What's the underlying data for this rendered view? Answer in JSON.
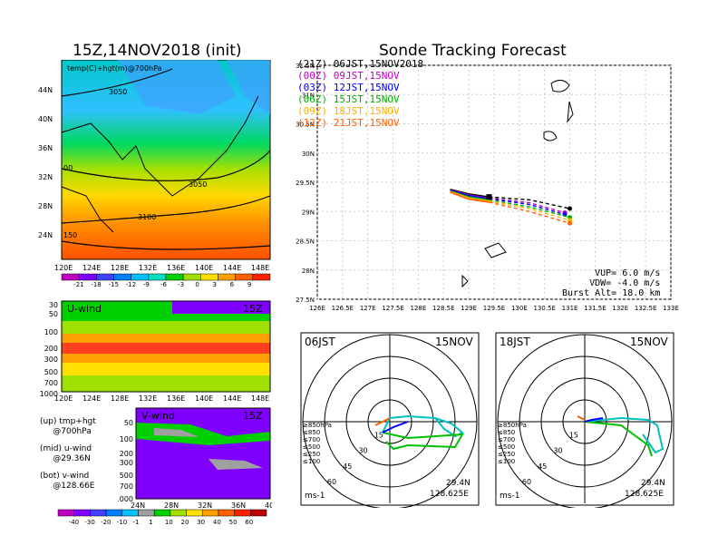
{
  "left_title": "15Z,14NOV2018 (init)",
  "right_title": "Sonde Tracking Forecast",
  "map": {
    "label": "temp(C)+hgt(m)@700hPa",
    "lat_ticks": [
      "44N",
      "40N",
      "36N",
      "32N",
      "28N",
      "24N"
    ],
    "lon_ticks": [
      "120E",
      "124E",
      "128E",
      "132E",
      "136E",
      "140E",
      "144E",
      "148E"
    ],
    "contour_labels": [
      "3050",
      "00",
      "3050",
      "3100",
      "150"
    ],
    "colorbar_ticks": [
      "-21",
      "-18",
      "-15",
      "-12",
      "-9",
      "-6",
      "-3",
      "0",
      "3",
      "6",
      "9"
    ],
    "colorbar_colors": [
      "#c000c0",
      "#8000ff",
      "#4040ff",
      "#0080ff",
      "#00c0ff",
      "#00e0c0",
      "#00d000",
      "#a0e000",
      "#ffe000",
      "#ffa000",
      "#ff6000",
      "#ff2000"
    ]
  },
  "uwind": {
    "label": "U-wind",
    "time": "15Z",
    "p_ticks": [
      "30",
      "50",
      "100",
      "200",
      "300",
      "500",
      "700",
      "1000"
    ],
    "lon_ticks": [
      "120E",
      "124E",
      "128E",
      "132E",
      "136E",
      "140E",
      "144E",
      "148E"
    ]
  },
  "vwind": {
    "label": "V-wind",
    "time": "15Z",
    "p_ticks": [
      "50",
      "100",
      "200",
      "300",
      "500",
      "700",
      "1000"
    ],
    "lat_ticks": [
      "24N",
      "28N",
      "32N",
      "36N",
      "40N"
    ],
    "colorbar_ticks": [
      "-40",
      "-30",
      "-20",
      "-10",
      "-1",
      "1",
      "10",
      "20",
      "30",
      "40",
      "50",
      "60"
    ],
    "colorbar_colors": [
      "#c000c0",
      "#8000ff",
      "#4040ff",
      "#0080ff",
      "#00c0ff",
      "#a0a0a0",
      "#00d000",
      "#a0e000",
      "#ffe000",
      "#ffa000",
      "#ff6000",
      "#ff2000",
      "#c00000"
    ]
  },
  "side_notes": {
    "up": "(up) tmp+hgt",
    "up2": "     @700hPa",
    "mid": "(mid) u-wind",
    "mid2": "     @29.36N",
    "bot": "(bot) v-wind",
    "bot2": "     @128.66E"
  },
  "track_key": [
    {
      "text": "(21Z) 06JST,15NOV2018",
      "color": "#000000"
    },
    {
      "text": "(00Z) 09JST,15NOV",
      "color": "#c000c0"
    },
    {
      "text": "(03Z) 12JST,15NOV",
      "color": "#0000ff"
    },
    {
      "text": "(06Z) 15JST,15NOV",
      "color": "#00b000"
    },
    {
      "text": "(09Z) 18JST,15NOV",
      "color": "#ffb000"
    },
    {
      "text": "(12Z) 21JST,15NOV",
      "color": "#ff6000"
    }
  ],
  "track_info": {
    "vup": "VUP= 6.0 m/s",
    "vdw": "VDW= -4.0 m/s",
    "burst": "Burst Alt= 18.0 km"
  },
  "chart_data": {
    "type": "line",
    "title": "Sonde Tracking Forecast",
    "xlim": [
      126,
      133
    ],
    "ylim": [
      27.5,
      31.5
    ],
    "x_ticks": [
      "126E",
      "126.5E",
      "127E",
      "127.5E",
      "128E",
      "128.5E",
      "129E",
      "129.5E",
      "130E",
      "130.5E",
      "131E",
      "131.5E",
      "132E",
      "132.5E",
      "133E"
    ],
    "y_ticks": [
      "27.5N",
      "28N",
      "28.5N",
      "29N",
      "29.5N",
      "30N",
      "30.5N",
      "31N",
      "31.5N"
    ],
    "launch": {
      "x": 129.4,
      "y": 29.25
    },
    "series": [
      {
        "name": "(21Z) 06JST,15NOV2018",
        "color": "#000000",
        "up": [
          [
            128.63,
            29.38
          ],
          [
            129.0,
            29.3
          ],
          [
            129.4,
            29.25
          ]
        ],
        "down": [
          [
            129.4,
            29.25
          ],
          [
            130.2,
            29.2
          ],
          [
            131.0,
            29.05
          ]
        ]
      },
      {
        "name": "(00Z) 09JST,15NOV",
        "color": "#c000c0",
        "up": [
          [
            128.63,
            29.37
          ],
          [
            129.0,
            29.28
          ],
          [
            129.4,
            29.23
          ]
        ],
        "down": [
          [
            129.4,
            29.23
          ],
          [
            130.2,
            29.15
          ],
          [
            130.9,
            28.98
          ]
        ]
      },
      {
        "name": "(03Z) 12JST,15NOV",
        "color": "#0000ff",
        "up": [
          [
            128.63,
            29.36
          ],
          [
            129.0,
            29.27
          ],
          [
            129.4,
            29.22
          ]
        ],
        "down": [
          [
            129.4,
            29.22
          ],
          [
            130.2,
            29.12
          ],
          [
            130.9,
            28.95
          ]
        ]
      },
      {
        "name": "(06Z) 15JST,15NOV",
        "color": "#00b000",
        "up": [
          [
            128.63,
            29.35
          ],
          [
            129.0,
            29.25
          ],
          [
            129.4,
            29.2
          ]
        ],
        "down": [
          [
            129.4,
            29.2
          ],
          [
            130.2,
            29.08
          ],
          [
            131.0,
            28.9
          ]
        ]
      },
      {
        "name": "(09Z) 18JST,15NOV",
        "color": "#ffb000",
        "up": [
          [
            128.63,
            29.34
          ],
          [
            129.0,
            29.23
          ],
          [
            129.4,
            29.18
          ]
        ],
        "down": [
          [
            129.4,
            29.18
          ],
          [
            130.2,
            29.05
          ],
          [
            131.0,
            28.85
          ]
        ]
      },
      {
        "name": "(12Z) 21JST,15NOV",
        "color": "#ff6000",
        "up": [
          [
            128.63,
            29.33
          ],
          [
            129.0,
            29.21
          ],
          [
            129.4,
            29.16
          ]
        ],
        "down": [
          [
            129.4,
            29.16
          ],
          [
            130.2,
            29.0
          ],
          [
            131.0,
            28.8
          ]
        ]
      }
    ]
  },
  "hodographs": [
    {
      "time": "06JST",
      "date": "15NOV",
      "lat": "29.4N",
      "lon": "128.625E",
      "unit": "ms-1",
      "rings": [
        "15",
        "30",
        "45",
        "60"
      ],
      "levels": [
        "≥850hPa",
        "≤850",
        "≤700",
        "≤500",
        "≤250",
        "≤100"
      ]
    },
    {
      "time": "18JST",
      "date": "15NOV",
      "lat": "29.4N",
      "lon": "128.625E",
      "unit": "ms-1",
      "rings": [
        "15",
        "30",
        "45",
        "60"
      ],
      "levels": [
        "≥850hPa",
        "≤850",
        "≤700",
        "≤500",
        "≤250",
        "≤100"
      ]
    }
  ]
}
